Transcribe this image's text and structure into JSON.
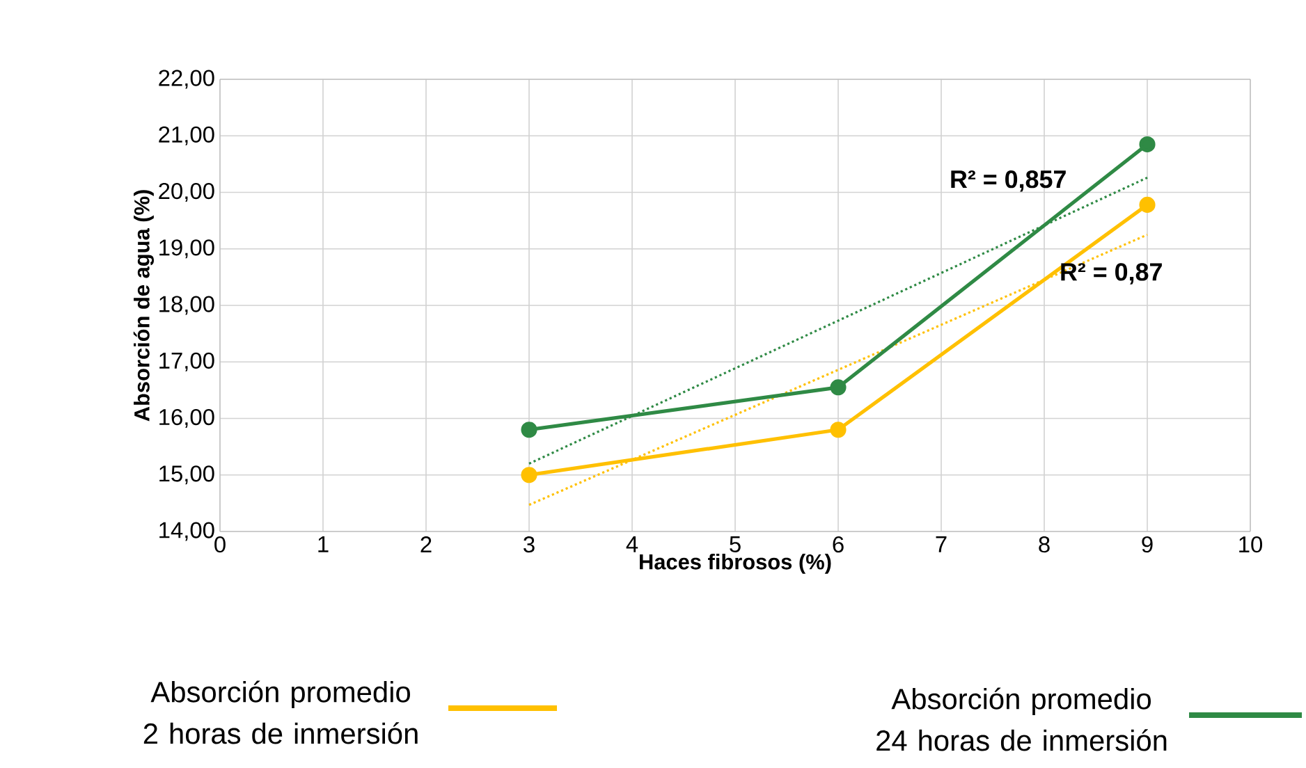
{
  "chart_data": {
    "type": "line",
    "xlabel": "Haces fibrosos (%)",
    "ylabel": "Absorción de agua (%)",
    "xlim": [
      0,
      10
    ],
    "xticks": [
      0,
      1,
      2,
      3,
      4,
      5,
      6,
      7,
      8,
      9,
      10
    ],
    "ylim": [
      14,
      22
    ],
    "yticks": [
      {
        "value": 14,
        "label": "14,00"
      },
      {
        "value": 15,
        "label": "15,00"
      },
      {
        "value": 16,
        "label": "16,00"
      },
      {
        "value": 17,
        "label": "17,00"
      },
      {
        "value": 18,
        "label": "18,00"
      },
      {
        "value": 19,
        "label": "19,00"
      },
      {
        "value": 20,
        "label": "20,00"
      },
      {
        "value": 21,
        "label": "21,00"
      },
      {
        "value": 22,
        "label": "22,00"
      }
    ],
    "grid": true,
    "legend": "bottom",
    "series": [
      {
        "name": "Absorción promedio 2 horas de inmersión",
        "color": "#ffc000",
        "x": [
          3,
          6,
          9
        ],
        "values": [
          15.0,
          15.8,
          19.78
        ],
        "marker": "circle",
        "line_style": "solid"
      },
      {
        "name": "Absorción promedio 24 horas de inmersión",
        "color": "#2f8a45",
        "x": [
          3,
          6,
          9
        ],
        "values": [
          15.8,
          16.55,
          20.85
        ],
        "marker": "circle",
        "line_style": "solid"
      },
      {
        "color": "#ffc000",
        "x": [
          3,
          9
        ],
        "values": [
          14.47,
          19.25
        ],
        "marker": "none",
        "line_style": "dotted"
      },
      {
        "color": "#2f8a45",
        "x": [
          3,
          9
        ],
        "values": [
          15.2,
          20.26
        ],
        "marker": "none",
        "line_style": "dotted"
      }
    ],
    "annotations": [
      "R² = 0,857",
      "R² = 0,87"
    ]
  }
}
